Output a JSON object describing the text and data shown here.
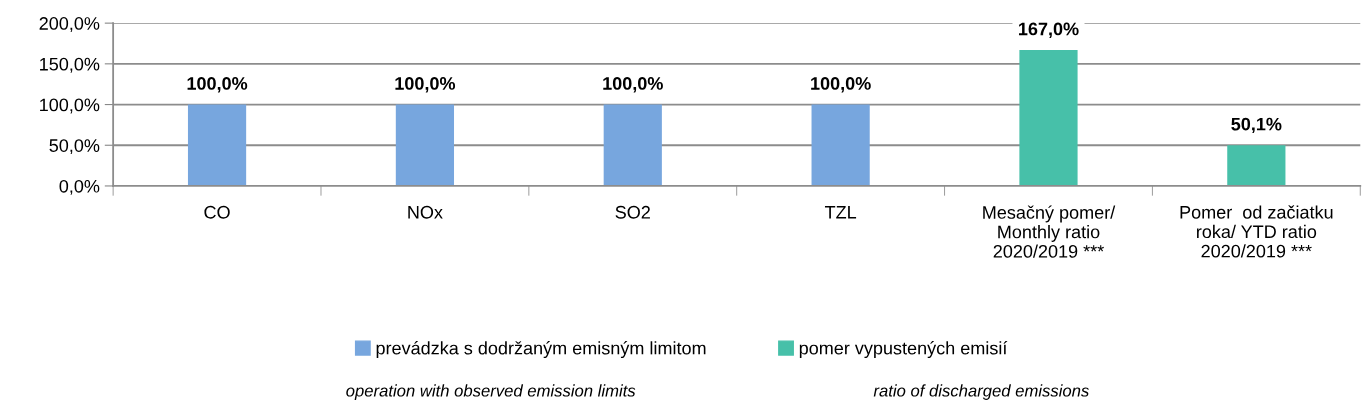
{
  "chart_data": {
    "type": "bar",
    "stacked": true,
    "categories": [
      "CO",
      "NOx",
      "SO2",
      "TZL",
      "Mesačný pomer/\nMonthly ratio\n2020/2019 ***",
      "Pomer  od začiatku\nroka/ YTD ratio\n2020/2019 ***"
    ],
    "series": [
      {
        "name": "prevádzka s dodržaným emisným limitom",
        "color": "#77a6de",
        "values": [
          100,
          100,
          100,
          100,
          null,
          null
        ],
        "value_labels": [
          "100,0%",
          "100,0%",
          "100,0%",
          "100,0%",
          null,
          null
        ]
      },
      {
        "name": "pomer vypustených emisií",
        "color": "#47c0a9",
        "values": [
          null,
          null,
          null,
          null,
          167,
          50.1
        ],
        "value_labels": [
          null,
          null,
          null,
          null,
          "167,0%",
          "50,1%"
        ]
      }
    ],
    "ylim": [
      0,
      200
    ],
    "yticks": [
      {
        "value": 0,
        "label": "0,0%"
      },
      {
        "value": 50,
        "label": "50,0%"
      },
      {
        "value": 100,
        "label": "100,0%"
      },
      {
        "value": 150,
        "label": "150,0%"
      },
      {
        "value": 200,
        "label": "200,0%"
      }
    ],
    "grid": "y",
    "legend": "bottom",
    "annotations": [
      "operation with observed emission limits",
      "ratio of discharged emissions"
    ]
  }
}
